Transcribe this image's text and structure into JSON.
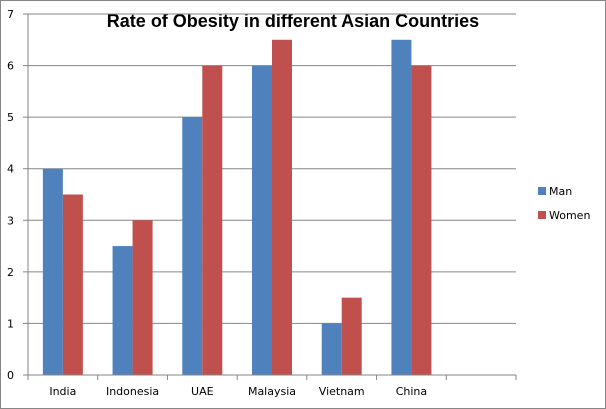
{
  "chart_data": {
    "type": "bar",
    "title": "Rate of Obesity in different Asian Countries",
    "categories": [
      "India",
      "Indonesia",
      "UAE",
      "Malaysia",
      "Vietnam",
      "China",
      ""
    ],
    "series": [
      {
        "name": "Man",
        "color": "#4F81BD",
        "values": [
          4,
          2.5,
          5,
          6,
          1,
          6.5,
          null
        ]
      },
      {
        "name": "Women",
        "color": "#C0504D",
        "values": [
          3.5,
          3,
          6,
          6.5,
          1.5,
          6,
          null
        ]
      }
    ],
    "y_ticks": [
      "0",
      "1",
      "2",
      "3",
      "4",
      "5",
      "6",
      "7"
    ],
    "ylim": [
      0,
      7
    ],
    "grid": true,
    "legend": "right"
  }
}
